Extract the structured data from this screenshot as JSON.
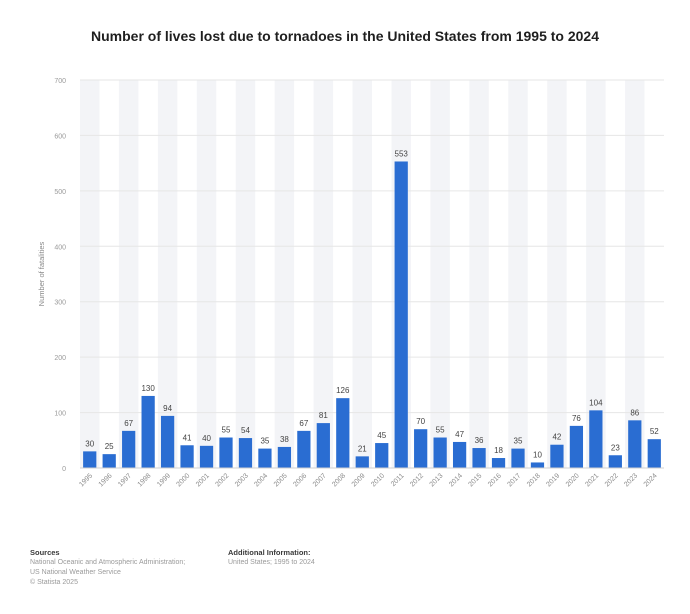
{
  "chart_data": {
    "type": "bar",
    "title": "Number of lives lost due to tornadoes in the United States from 1995 to 2024",
    "ylabel": "Number of fatalities",
    "xlabel": "",
    "ylim": [
      0,
      700
    ],
    "yticks": [
      "0",
      "100",
      "200",
      "300",
      "400",
      "500",
      "600",
      "700"
    ],
    "categories": [
      "1995",
      "1996",
      "1997",
      "1998",
      "1999",
      "2000",
      "2001",
      "2002",
      "2003",
      "2004",
      "2005",
      "2006",
      "2007",
      "2008",
      "2009",
      "2010",
      "2011",
      "2012",
      "2013",
      "2014",
      "2015",
      "2016",
      "2017",
      "2018",
      "2019",
      "2020",
      "2021",
      "2022",
      "2023",
      "2024"
    ],
    "values": [
      30,
      25,
      67,
      130,
      94,
      41,
      40,
      55,
      54,
      35,
      38,
      67,
      81,
      126,
      21,
      45,
      553,
      70,
      55,
      47,
      36,
      18,
      35,
      10,
      42,
      76,
      104,
      23,
      86,
      52
    ],
    "value_labels": [
      "30",
      "25",
      "67",
      "130",
      "94",
      "41",
      "40",
      "55",
      "54",
      "35",
      "38",
      "67",
      "81",
      "126",
      "21",
      "45",
      "553",
      "70",
      "55",
      "47",
      "36",
      "18",
      "35",
      "10",
      "42",
      "76",
      "104",
      "23",
      "86",
      "52"
    ],
    "bar_color": "#2a6dd2",
    "band_color": "#f3f4f7",
    "grid": true,
    "legend": "none"
  },
  "footer": {
    "sources_heading": "Sources",
    "sources_lines": [
      "National Oceanic and Atmospheric Administration;",
      "US National Weather Service",
      "© Statista 2025"
    ],
    "additional_heading": "Additional Information:",
    "additional_lines": [
      "United States; 1995 to 2024"
    ]
  }
}
